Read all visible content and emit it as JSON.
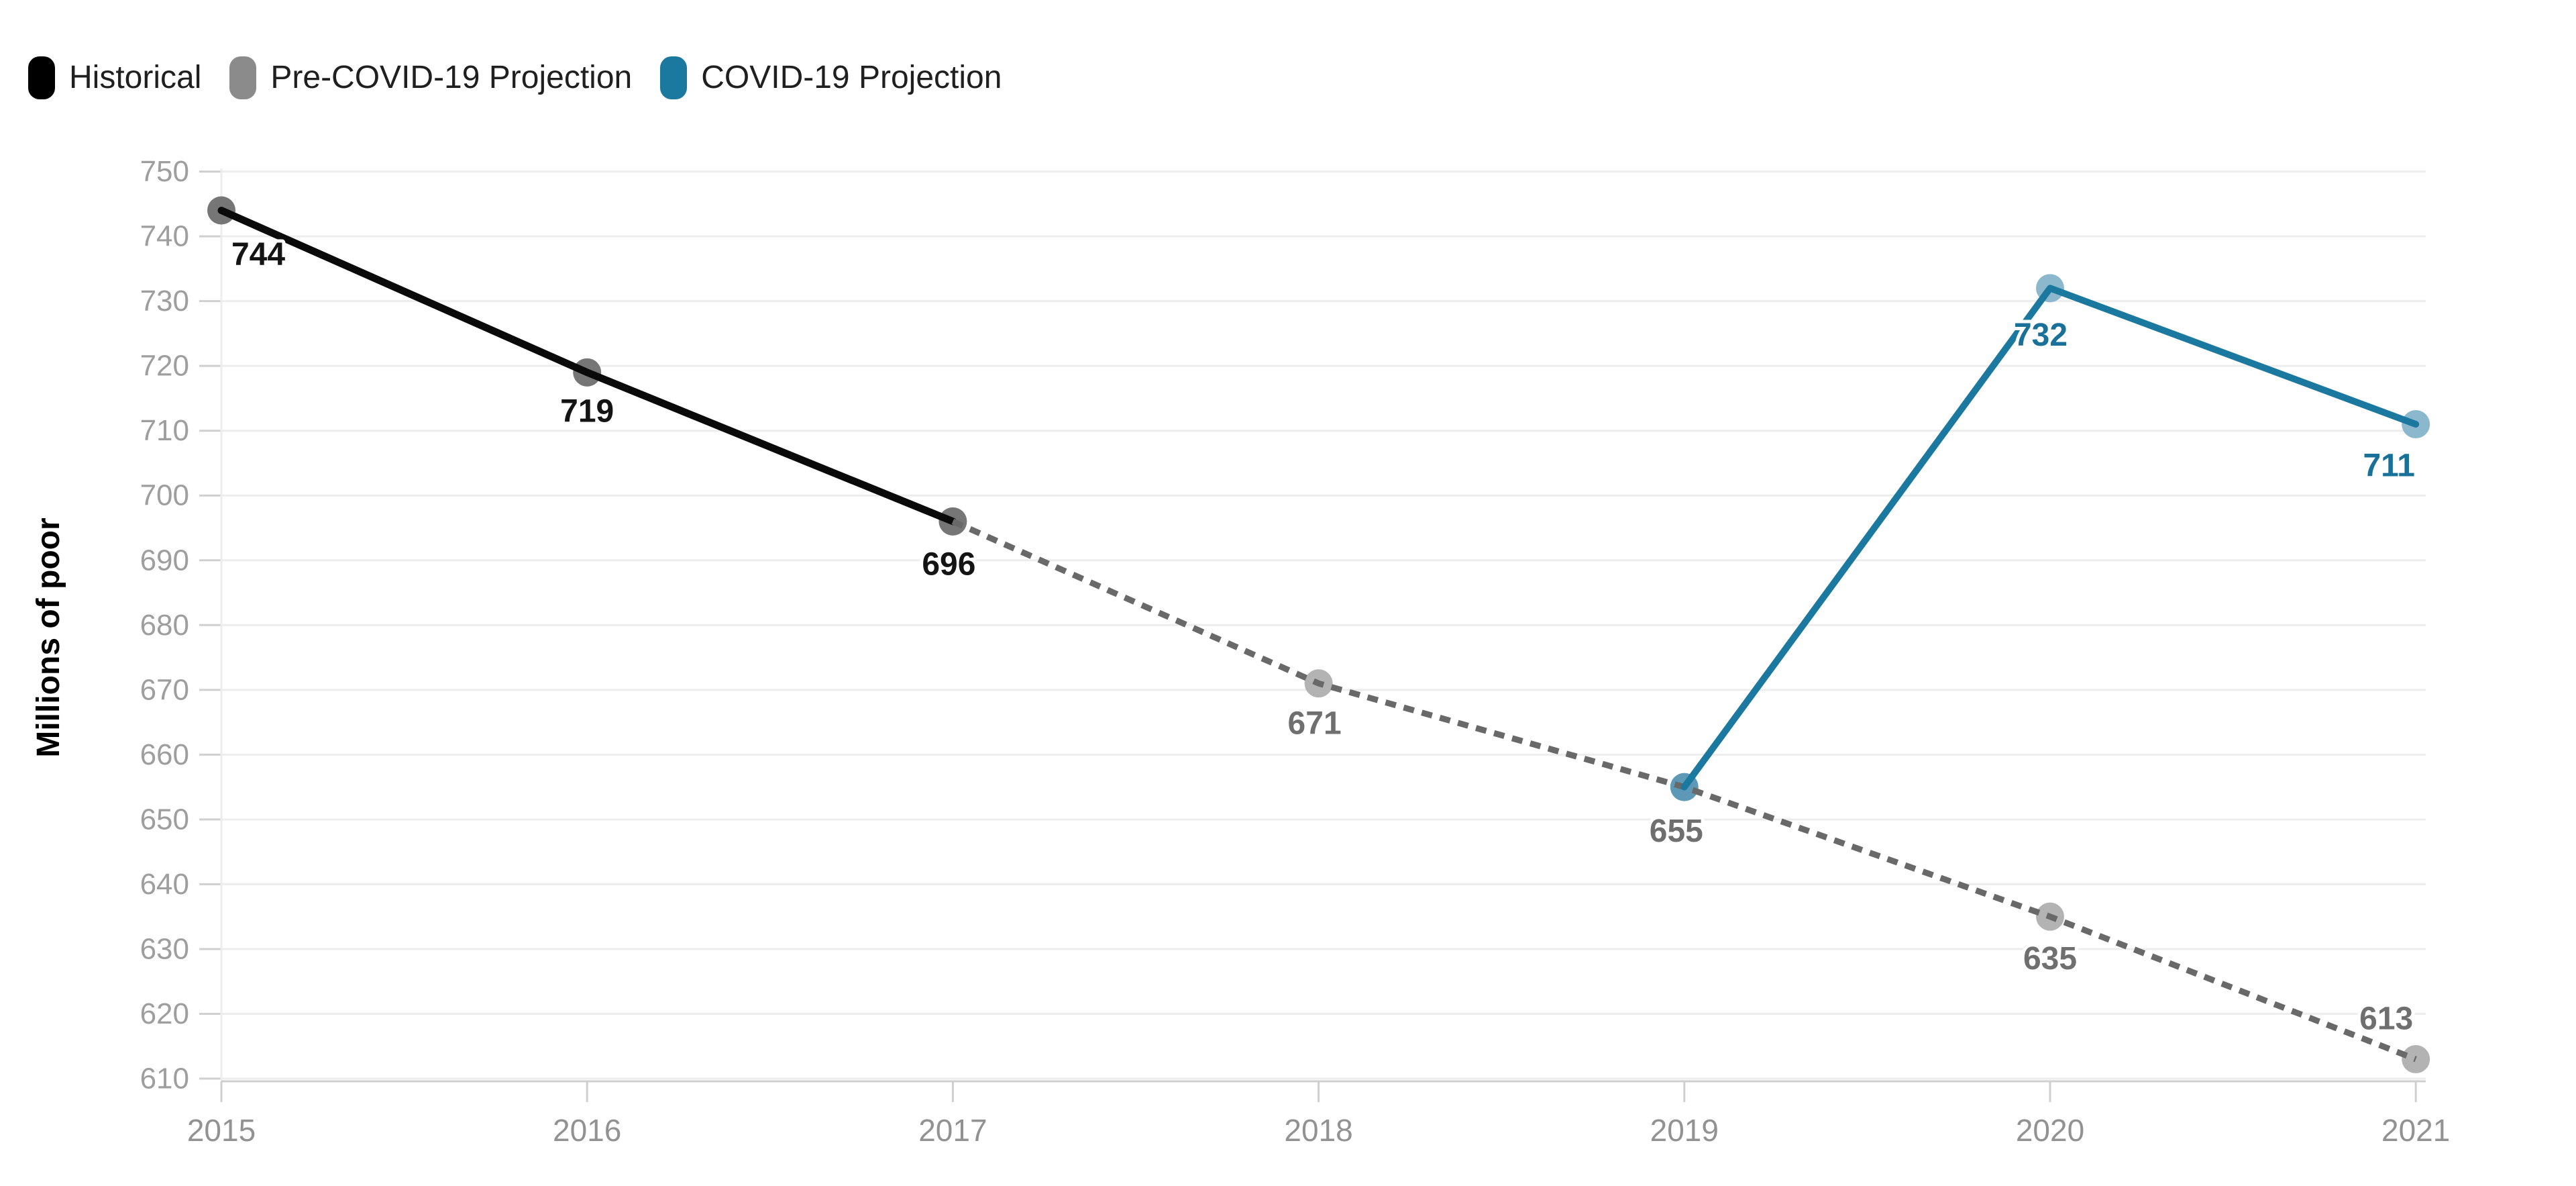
{
  "legend": {
    "items": [
      {
        "label": "Historical",
        "color": "#000000"
      },
      {
        "label": "Pre-COVID-19 Projection",
        "color": "#8b8b8b"
      },
      {
        "label": "COVID-19 Projection",
        "color": "#1b79a0"
      }
    ]
  },
  "chart_data": {
    "type": "line",
    "title": "",
    "xlabel": "",
    "ylabel": "Millions of poor",
    "x_ticks": [
      2015,
      2016,
      2017,
      2018,
      2019,
      2020,
      2021
    ],
    "y_ticks": [
      610,
      620,
      630,
      640,
      650,
      660,
      670,
      680,
      690,
      700,
      710,
      720,
      730,
      740,
      750
    ],
    "xlim": [
      2015,
      2021
    ],
    "ylim": [
      600,
      755
    ],
    "grid": "horizontal gridlines at every 10, vertical gridline at 2015 only",
    "legend_position": "top-left",
    "series": [
      {
        "name": "Historical",
        "color": "#0a0a0a",
        "style": "solid",
        "stroke_width": 11,
        "marker_color": "#767676",
        "label_color": "#141414",
        "points": [
          {
            "x": 2015,
            "y": 744,
            "label_dx": 55,
            "label_dy": 66
          },
          {
            "x": 2016,
            "y": 719,
            "label_dx": 0,
            "label_dy": 58
          },
          {
            "x": 2017,
            "y": 696,
            "label_dx": -6,
            "label_dy": 64
          }
        ]
      },
      {
        "name": "Pre-COVID-19 Projection",
        "color": "#696969",
        "style": "dashed",
        "stroke_width": 9,
        "marker_color": "#b3b3b3",
        "label_color": "#6f6f6f",
        "points": [
          {
            "x": 2017,
            "y": 696,
            "marker": "none",
            "no_label": true
          },
          {
            "x": 2018,
            "y": 671,
            "label_dx": -6,
            "label_dy": 60
          },
          {
            "x": 2019,
            "y": 655,
            "marker": "none",
            "label_dx": -12,
            "label_dy": 66
          },
          {
            "x": 2020,
            "y": 635,
            "label_dx": 0,
            "label_dy": 63
          },
          {
            "x": 2021,
            "y": 613,
            "label_dx": -44,
            "label_dy": -60
          }
        ]
      },
      {
        "name": "COVID-19 Projection",
        "color": "#1b79a0",
        "style": "solid",
        "stroke_width": 10,
        "marker_color": "#8cb8cd",
        "label_color": "#19719a",
        "points": [
          {
            "x": 2019,
            "y": 655,
            "marker": "#5d99b7",
            "no_label": true
          },
          {
            "x": 2020,
            "y": 732,
            "label_dx": -14,
            "label_dy": 70
          },
          {
            "x": 2021,
            "y": 711,
            "label_dx": -40,
            "label_dy": 62
          }
        ]
      }
    ]
  }
}
